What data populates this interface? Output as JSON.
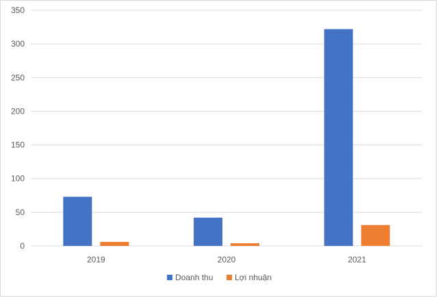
{
  "chart_data": {
    "type": "bar",
    "categories": [
      "2019",
      "2020",
      "2021"
    ],
    "series": [
      {
        "name": "Doanh thu",
        "values": [
          73,
          42,
          322
        ],
        "color": "#4472c4"
      },
      {
        "name": "Lợi nhuận",
        "values": [
          6,
          4,
          31
        ],
        "color": "#ed7d31"
      }
    ],
    "title": "",
    "xlabel": "",
    "ylabel": "",
    "ylim": [
      0,
      350
    ],
    "yticks": [
      "0",
      "50",
      "100",
      "150",
      "200",
      "250",
      "300",
      "350"
    ],
    "grid": true,
    "legend_position": "bottom"
  }
}
